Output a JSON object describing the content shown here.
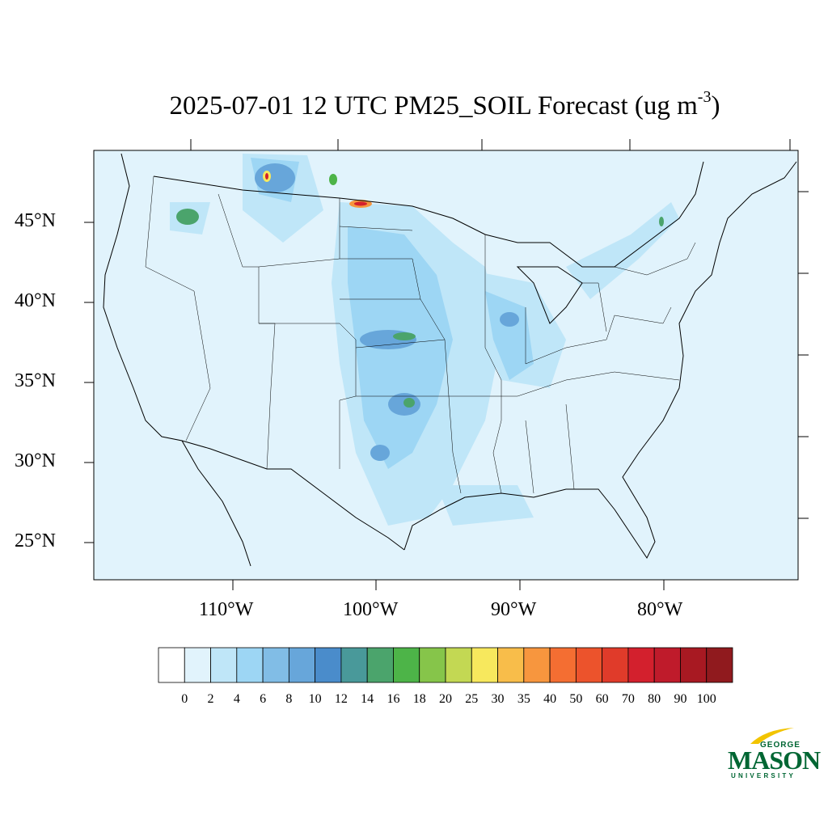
{
  "title": {
    "main": "2025-07-01 12 UTC PM25_SOIL Forecast (ug m",
    "exponent": "-3",
    "close": ")"
  },
  "axes": {
    "lat_labels": [
      "45°N",
      "40°N",
      "35°N",
      "30°N",
      "25°N"
    ],
    "lon_labels": [
      "110°W",
      "100°W",
      "90°W",
      "80°W"
    ]
  },
  "legend": {
    "levels": [
      "0",
      "2",
      "4",
      "6",
      "8",
      "10",
      "12",
      "14",
      "16",
      "18",
      "20",
      "25",
      "30",
      "35",
      "40",
      "50",
      "60",
      "70",
      "80",
      "90",
      "100"
    ],
    "colors": [
      "#ffffff",
      "#e1f3fc",
      "#bfe6f8",
      "#9dd6f4",
      "#81bde6",
      "#67a6da",
      "#4a8ccb",
      "#49999a",
      "#4ba46c",
      "#4db448",
      "#86c54a",
      "#c3d853",
      "#f7e85d",
      "#f8bd4a",
      "#f7963e",
      "#f46e32",
      "#ec532c",
      "#e03b2a",
      "#d3202d",
      "#bf1b2b",
      "#a81922",
      "#901a1e"
    ]
  },
  "map": {
    "background_color": "#e1f3fc",
    "region": "Contiguous United States"
  },
  "logo": {
    "line1": "GEORGE",
    "line2": "MASON",
    "line3": "UNIVERSITY",
    "color": "#006633"
  }
}
